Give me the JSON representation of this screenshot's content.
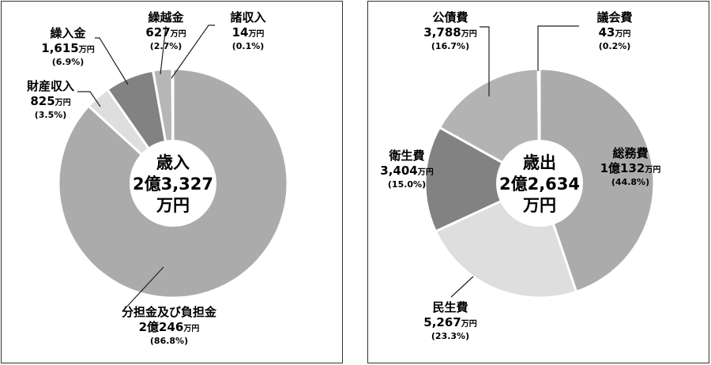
{
  "chart_data": [
    {
      "type": "pie",
      "center_title": "歳入",
      "center_amount": "2億3,327",
      "center_unit": "万円",
      "slices": [
        {
          "name": "分担金及び負担金",
          "amount": "2億246",
          "unit": "万円",
          "percent_label": "(86.8%)",
          "value": 86.8,
          "color": "#ababab"
        },
        {
          "name": "財産収入",
          "amount": "825",
          "unit": "万円",
          "percent_label": "(3.5%)",
          "value": 3.5,
          "color": "#dedede"
        },
        {
          "name": "繰入金",
          "amount": "1,615",
          "unit": "万円",
          "percent_label": "(6.9%)",
          "value": 6.9,
          "color": "#828282"
        },
        {
          "name": "繰越金",
          "amount": "627",
          "unit": "万円",
          "percent_label": "(2.7%)",
          "value": 2.7,
          "color": "#b6b6b6"
        },
        {
          "name": "諸収入",
          "amount": "14",
          "unit": "万円",
          "percent_label": "(0.1%)",
          "value": 0.1,
          "color": "#7a7a7a"
        }
      ]
    },
    {
      "type": "pie",
      "center_title": "歳出",
      "center_amount": "2億2,634",
      "center_unit": "万円",
      "slices": [
        {
          "name": "総務費",
          "amount": "1億132",
          "unit": "万円",
          "percent_label": "(44.8%)",
          "value": 44.8,
          "color": "#ababab"
        },
        {
          "name": "民生費",
          "amount": "5,267",
          "unit": "万円",
          "percent_label": "(23.3%)",
          "value": 23.3,
          "color": "#dedede"
        },
        {
          "name": "衛生費",
          "amount": "3,404",
          "unit": "万円",
          "percent_label": "(15.0%)",
          "value": 15.0,
          "color": "#828282"
        },
        {
          "name": "公債費",
          "amount": "3,788",
          "unit": "万円",
          "percent_label": "(16.7%)",
          "value": 16.7,
          "color": "#b3b3b3"
        },
        {
          "name": "議会費",
          "amount": "43",
          "unit": "万円",
          "percent_label": "(0.2%)",
          "value": 0.2,
          "color": "#c8c8c8"
        }
      ]
    }
  ]
}
